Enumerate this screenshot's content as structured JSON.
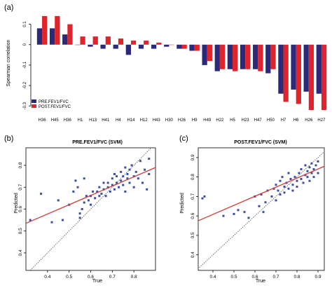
{
  "chart_data": [
    {
      "type": "bar",
      "panel_label": "(a)",
      "ylabel": "Spearman correlation",
      "ylim": [
        -0.33,
        0.15
      ],
      "yticks": [
        0.1,
        0.0,
        -0.1,
        -0.2,
        -0.3
      ],
      "ytick_labels": [
        "0.1",
        "0",
        "-0.1",
        "-0.2",
        "-0.3"
      ],
      "categories": [
        "H36",
        "H45",
        "H36",
        "H1",
        "H13",
        "H41",
        "H4",
        "H14",
        "H12",
        "H43",
        "H30",
        "H26",
        "H9",
        "H49",
        "H22",
        "H5",
        "H23",
        "H47",
        "H50",
        "H7",
        "H6",
        "H26",
        "H27"
      ],
      "series": [
        {
          "name": "PRE.FEV1/FVC",
          "color": "#2b2a7a",
          "values": [
            0.08,
            0.08,
            0.05,
            0.0,
            -0.01,
            -0.02,
            -0.02,
            -0.05,
            -0.02,
            -0.02,
            -0.01,
            -0.02,
            -0.03,
            -0.1,
            -0.13,
            -0.12,
            -0.12,
            -0.12,
            -0.14,
            -0.24,
            -0.22,
            -0.23,
            -0.24
          ]
        },
        {
          "name": "POST.FEV1/FVC",
          "color": "#e0242b",
          "values": [
            0.14,
            0.14,
            0.1,
            0.04,
            0.04,
            0.04,
            0.03,
            0.02,
            0.02,
            0.01,
            0.0,
            -0.02,
            -0.03,
            -0.08,
            -0.12,
            -0.13,
            -0.12,
            -0.13,
            -0.12,
            -0.28,
            -0.29,
            -0.32,
            -0.32
          ]
        }
      ],
      "legend_position": "bottom-left"
    },
    {
      "type": "scatter",
      "panel_label": "(b)",
      "title": "PRE.FEV1/FVC (SVM)",
      "xlabel": "True",
      "ylabel": "Predicted",
      "xlim": [
        0.3,
        0.9
      ],
      "ylim": [
        0.32,
        0.88
      ],
      "xticks": [
        0.4,
        0.5,
        0.6,
        0.7,
        0.8
      ],
      "yticks": [
        0.4,
        0.5,
        0.6,
        0.7,
        0.8
      ],
      "point_color": "#3a4ea8",
      "fit_line": {
        "x": [
          0.3,
          0.9
        ],
        "y": [
          0.535,
          0.79
        ],
        "color": "#d43a34"
      },
      "identity_line": true,
      "points": [
        [
          0.32,
          0.55
        ],
        [
          0.37,
          0.67
        ],
        [
          0.42,
          0.54
        ],
        [
          0.45,
          0.64
        ],
        [
          0.47,
          0.55
        ],
        [
          0.5,
          0.62
        ],
        [
          0.52,
          0.68
        ],
        [
          0.53,
          0.73
        ],
        [
          0.54,
          0.7
        ],
        [
          0.55,
          0.56
        ],
        [
          0.55,
          0.58
        ],
        [
          0.56,
          0.6
        ],
        [
          0.57,
          0.63
        ],
        [
          0.57,
          0.74
        ],
        [
          0.58,
          0.66
        ],
        [
          0.59,
          0.64
        ],
        [
          0.6,
          0.62
        ],
        [
          0.6,
          0.66
        ],
        [
          0.61,
          0.68
        ],
        [
          0.62,
          0.65
        ],
        [
          0.63,
          0.68
        ],
        [
          0.64,
          0.66
        ],
        [
          0.64,
          0.7
        ],
        [
          0.65,
          0.67
        ],
        [
          0.66,
          0.69
        ],
        [
          0.66,
          0.72
        ],
        [
          0.67,
          0.66
        ],
        [
          0.68,
          0.7
        ],
        [
          0.68,
          0.72
        ],
        [
          0.69,
          0.68
        ],
        [
          0.7,
          0.74
        ],
        [
          0.7,
          0.71
        ],
        [
          0.71,
          0.69
        ],
        [
          0.71,
          0.76
        ],
        [
          0.72,
          0.72
        ],
        [
          0.72,
          0.75
        ],
        [
          0.73,
          0.7
        ],
        [
          0.74,
          0.73
        ],
        [
          0.74,
          0.77
        ],
        [
          0.75,
          0.71
        ],
        [
          0.75,
          0.75
        ],
        [
          0.76,
          0.79
        ],
        [
          0.76,
          0.68
        ],
        [
          0.77,
          0.74
        ],
        [
          0.77,
          0.76
        ],
        [
          0.78,
          0.78
        ],
        [
          0.78,
          0.72
        ],
        [
          0.79,
          0.8
        ],
        [
          0.8,
          0.75
        ],
        [
          0.8,
          0.7
        ],
        [
          0.81,
          0.77
        ],
        [
          0.82,
          0.74
        ],
        [
          0.83,
          0.82
        ],
        [
          0.84,
          0.72
        ],
        [
          0.85,
          0.78
        ],
        [
          0.86,
          0.69
        ],
        [
          0.87,
          0.83
        ],
        [
          0.87,
          0.76
        ]
      ]
    },
    {
      "type": "scatter",
      "panel_label": "(c)",
      "title": "POST.FEV1/FVC (SVM)",
      "xlabel": "True",
      "ylabel": "Predicted",
      "xlim": [
        0.33,
        0.93
      ],
      "ylim": [
        0.32,
        0.95
      ],
      "xticks": [
        0.4,
        0.5,
        0.6,
        0.7,
        0.8,
        0.9
      ],
      "yticks": [
        0.4,
        0.5,
        0.6,
        0.7,
        0.8,
        0.9
      ],
      "point_color": "#3a4ea8",
      "fit_line": {
        "x": [
          0.33,
          0.93
        ],
        "y": [
          0.575,
          0.855
        ],
        "color": "#d43a34"
      },
      "identity_line": true,
      "points": [
        [
          0.35,
          0.69
        ],
        [
          0.36,
          0.7
        ],
        [
          0.45,
          0.6
        ],
        [
          0.5,
          0.61
        ],
        [
          0.52,
          0.63
        ],
        [
          0.55,
          0.62
        ],
        [
          0.57,
          0.59
        ],
        [
          0.6,
          0.7
        ],
        [
          0.62,
          0.65
        ],
        [
          0.63,
          0.71
        ],
        [
          0.64,
          0.62
        ],
        [
          0.65,
          0.67
        ],
        [
          0.66,
          0.73
        ],
        [
          0.68,
          0.7
        ],
        [
          0.69,
          0.74
        ],
        [
          0.7,
          0.68
        ],
        [
          0.7,
          0.76
        ],
        [
          0.71,
          0.73
        ],
        [
          0.72,
          0.78
        ],
        [
          0.72,
          0.71
        ],
        [
          0.73,
          0.8
        ],
        [
          0.74,
          0.75
        ],
        [
          0.74,
          0.72
        ],
        [
          0.75,
          0.77
        ],
        [
          0.76,
          0.74
        ],
        [
          0.76,
          0.82
        ],
        [
          0.77,
          0.79
        ],
        [
          0.78,
          0.76
        ],
        [
          0.78,
          0.73
        ],
        [
          0.79,
          0.8
        ],
        [
          0.8,
          0.78
        ],
        [
          0.8,
          0.75
        ],
        [
          0.81,
          0.82
        ],
        [
          0.82,
          0.79
        ],
        [
          0.82,
          0.84
        ],
        [
          0.83,
          0.77
        ],
        [
          0.84,
          0.81
        ],
        [
          0.84,
          0.86
        ],
        [
          0.85,
          0.8
        ],
        [
          0.85,
          0.83
        ],
        [
          0.86,
          0.78
        ],
        [
          0.86,
          0.85
        ],
        [
          0.87,
          0.82
        ],
        [
          0.87,
          0.87
        ],
        [
          0.88,
          0.84
        ],
        [
          0.88,
          0.8
        ],
        [
          0.89,
          0.86
        ],
        [
          0.9,
          0.82
        ],
        [
          0.9,
          0.88
        ]
      ]
    }
  ]
}
